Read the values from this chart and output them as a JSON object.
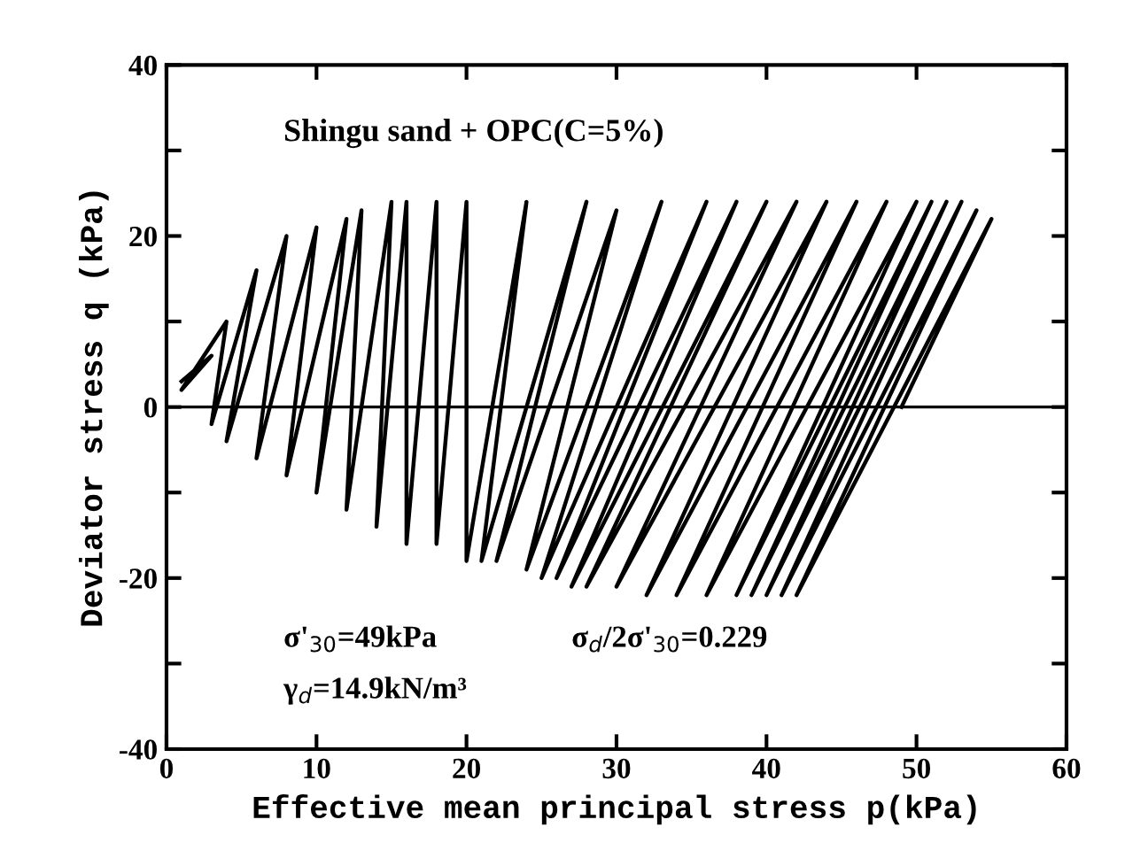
{
  "chart_data": {
    "type": "line",
    "xlabel": "Effective mean principal stress p(kPa)",
    "ylabel": "Deviator stress q (kPa)",
    "xlim": [
      0,
      60
    ],
    "ylim": [
      -40,
      40
    ],
    "xticks": [
      0,
      10,
      20,
      30,
      40,
      50,
      60
    ],
    "yticks": [
      -40,
      {
        "value": -30,
        "label": null
      },
      -20,
      {
        "value": -10,
        "label": null
      },
      0,
      {
        "value": 10,
        "label": null
      },
      20,
      {
        "value": 30,
        "label": null
      },
      40
    ],
    "grid": false,
    "marker": "none",
    "line_style": "solid",
    "series": [
      {
        "color": "#000000",
        "x": [
          49,
          55,
          42,
          54,
          41,
          53,
          40,
          52,
          39,
          51,
          38,
          50,
          36,
          48,
          34,
          46,
          32,
          44,
          30,
          42,
          28,
          40,
          27,
          38,
          26,
          36,
          25,
          33,
          24,
          30,
          22,
          28,
          21,
          24,
          20,
          20,
          18,
          18,
          16,
          16,
          14,
          15,
          12,
          13,
          10,
          12,
          8,
          10,
          6,
          8,
          4,
          6,
          3,
          4,
          1,
          3,
          1
        ],
        "values": [
          0,
          22,
          -22,
          23,
          -22,
          24,
          -22,
          24,
          -22,
          24,
          -22,
          24,
          -22,
          24,
          -22,
          24,
          -22,
          24,
          -21,
          24,
          -21,
          24,
          -21,
          24,
          -20,
          24,
          -20,
          24,
          -19,
          23,
          -18,
          24,
          -18,
          24,
          -18,
          24,
          -16,
          24,
          -16,
          24,
          -14,
          24,
          -12,
          23,
          -10,
          22,
          -8,
          21,
          -6,
          20,
          -4,
          16,
          -2,
          10,
          2,
          6,
          3
        ]
      }
    ],
    "ref_lines": [
      {
        "axis": "y",
        "value": 0,
        "color": "#000000"
      }
    ],
    "annotations": [
      "Shingu sand + OPC(C=5%)",
      "σ'$_{30}$=49kPa",
      "σ$_{d}$/2σ'$_{30}$=0.229",
      "γ$_{d}$=14.9kN/m³"
    ]
  }
}
